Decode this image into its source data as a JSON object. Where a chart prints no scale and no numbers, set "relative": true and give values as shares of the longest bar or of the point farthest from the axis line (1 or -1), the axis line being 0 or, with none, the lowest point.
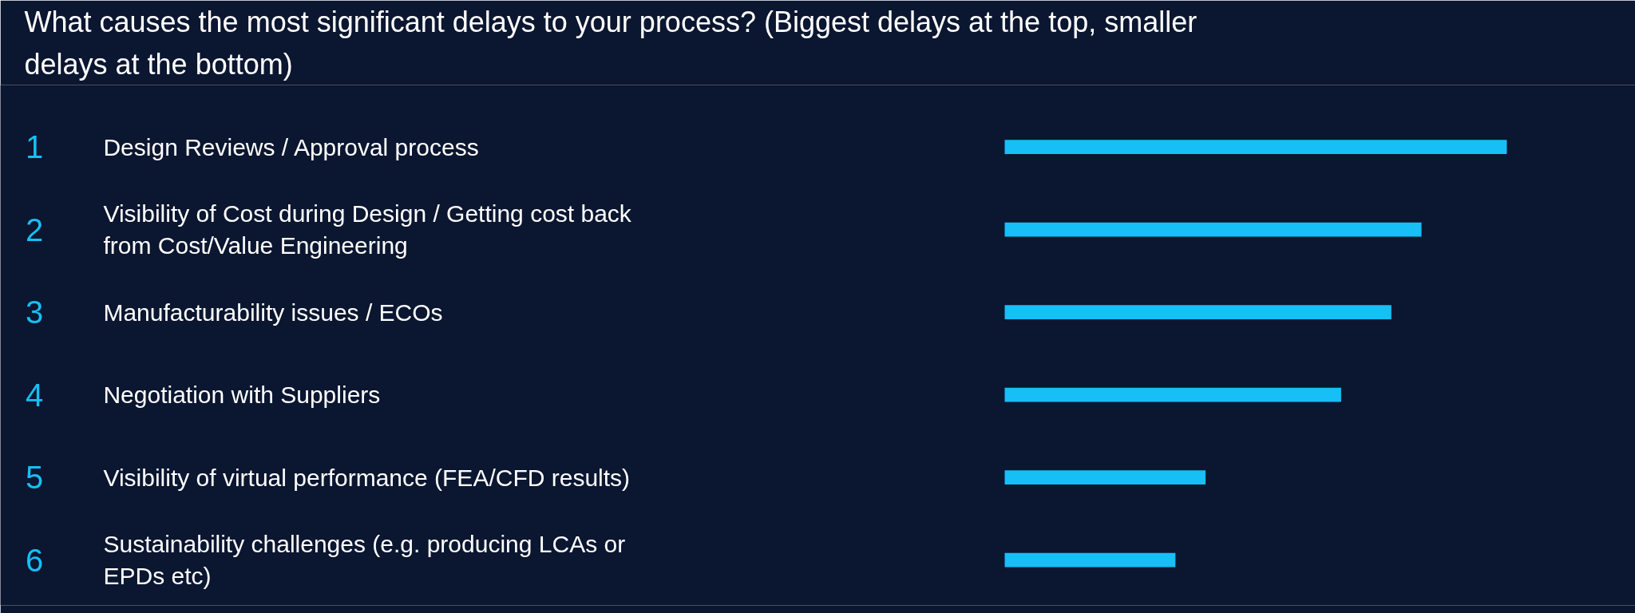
{
  "chart_data": {
    "type": "bar",
    "orientation": "horizontal",
    "relative": true,
    "title": "What causes the most significant delays to your process? (Biggest delays at the top, smaller delays at the bottom)",
    "categories": [
      "Design Reviews / Approval process",
      "Visibility of Cost during Design / Getting cost back from Cost/Value Engineering",
      "Manufacturability issues / ECOs",
      "Negotiation with Suppliers",
      "Visibility of virtual performance (FEA/CFD results)",
      "Sustainability challenges (e.g. producing LCAs or EPDs etc)"
    ],
    "values": [
      1,
      0.83,
      0.77,
      0.67,
      0.4,
      0.34
    ],
    "color": "#16bff5",
    "annotations": [
      "1",
      "2",
      "3",
      "4",
      "5",
      "6"
    ],
    "grid": false
  }
}
